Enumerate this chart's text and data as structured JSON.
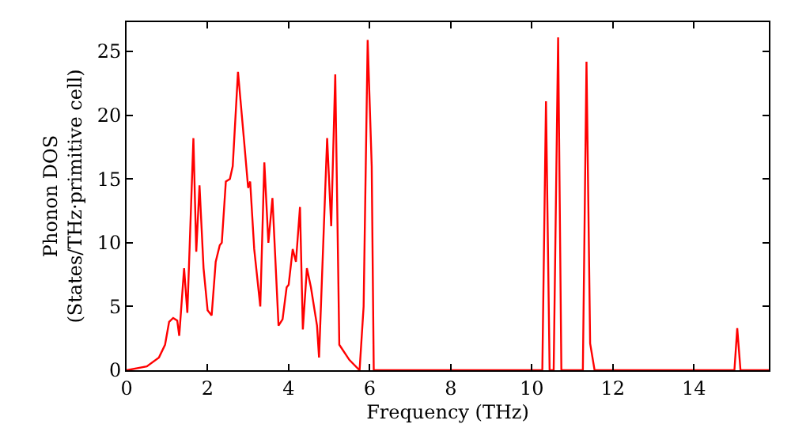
{
  "chart_data": {
    "type": "line",
    "xlabel": "Frequency (THz)",
    "ylabel": "Phonon DOS\n(States/THz·primitive cell)",
    "xlim": [
      0,
      15.85
    ],
    "ylim": [
      0,
      27.3
    ],
    "xticks": [
      0,
      2,
      4,
      6,
      8,
      10,
      12,
      14
    ],
    "yticks": [
      0,
      5,
      10,
      15,
      20,
      25
    ],
    "grid": false,
    "marker": "none",
    "line_style": "solid",
    "series": [
      {
        "color": "#ff0000",
        "x": [
          0,
          0.5,
          0.8,
          0.95,
          1.05,
          1.15,
          1.25,
          1.3,
          1.42,
          1.5,
          1.65,
          1.72,
          1.8,
          1.9,
          2.0,
          2.1,
          2.2,
          2.3,
          2.35,
          2.45,
          2.55,
          2.62,
          2.75,
          2.9,
          3.0,
          3.05,
          3.15,
          3.3,
          3.4,
          3.5,
          3.6,
          3.75,
          3.85,
          3.95,
          4.0,
          4.1,
          4.18,
          4.28,
          4.35,
          4.45,
          4.55,
          4.7,
          4.75,
          4.95,
          5.05,
          5.15,
          5.25,
          5.5,
          5.75,
          5.85,
          5.95,
          6.05,
          6.1,
          10.26,
          10.35,
          10.44,
          10.54,
          10.65,
          10.73,
          11.26,
          11.35,
          11.44,
          11.55,
          15.0,
          15.07,
          15.15,
          15.85
        ],
        "values": [
          0,
          0.3,
          1.0,
          2.0,
          3.8,
          4.1,
          3.9,
          2.7,
          8.0,
          4.5,
          18.2,
          9.3,
          14.5,
          8,
          4.7,
          4.3,
          8.5,
          9.8,
          10,
          14.8,
          15,
          16,
          23.4,
          18,
          14.3,
          14.8,
          9.5,
          5.0,
          16.3,
          10,
          13.5,
          3.5,
          4,
          6.5,
          6.7,
          9.5,
          8.5,
          12.8,
          3.2,
          8.0,
          6.5,
          3.5,
          1.0,
          18.2,
          11.3,
          23.2,
          2.0,
          0.8,
          0,
          5,
          25.9,
          16,
          0,
          0,
          21.1,
          0,
          0,
          26.1,
          0,
          0,
          24.2,
          2.1,
          0,
          0,
          3.3,
          0,
          0
        ]
      }
    ]
  }
}
